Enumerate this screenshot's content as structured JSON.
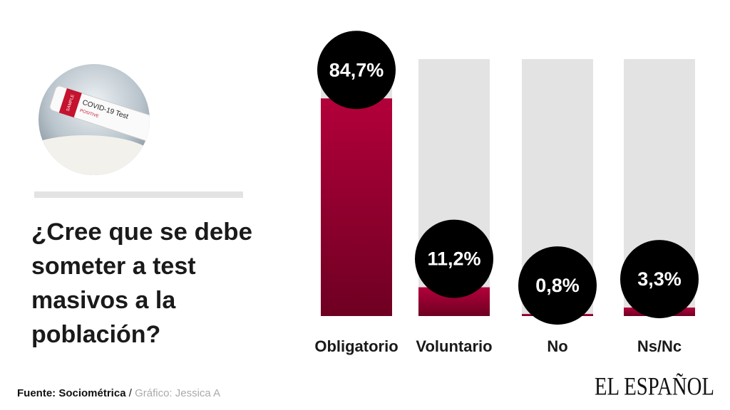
{
  "chart_data": {
    "type": "bar",
    "title_lines": [
      "¿Cree que se debe",
      "someter a test",
      "masivos a la",
      "población?"
    ],
    "categories": [
      "Obligatorio",
      "Voluntario",
      "No",
      "Ns/Nc"
    ],
    "values": [
      84.7,
      11.2,
      0.8,
      3.3
    ],
    "value_labels": [
      "84,7%",
      "11,2%",
      "0,8%",
      "3,3%"
    ],
    "ylim": [
      0,
      100
    ],
    "color": "#a4002f",
    "background_color": "#e3e3e3",
    "photo_text": [
      "SAMPLE",
      "COVID-19 Test",
      "POSITIVE"
    ],
    "source": "Fuente: Sociométrica",
    "separator": "/",
    "credit": "Gráfico: Jessica A",
    "brand": "EL ESPAÑOL"
  }
}
